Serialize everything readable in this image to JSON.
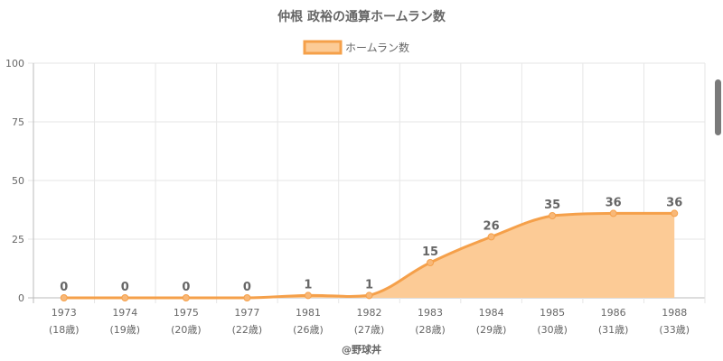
{
  "chart_data": {
    "type": "area",
    "title": "仲根 政裕の通算ホームラン数",
    "legend": {
      "label": "ホームラン数",
      "position": "top"
    },
    "categories": [
      "1973",
      "1974",
      "1975",
      "1977",
      "1981",
      "1982",
      "1983",
      "1984",
      "1985",
      "1986",
      "1988"
    ],
    "category_sublabels": [
      "(18歳)",
      "(19歳)",
      "(20歳)",
      "(22歳)",
      "(26歳)",
      "(27歳)",
      "(28歳)",
      "(29歳)",
      "(30歳)",
      "(31歳)",
      "(33歳)"
    ],
    "series": [
      {
        "name": "ホームラン数",
        "values": [
          0,
          0,
          0,
          0,
          1,
          1,
          15,
          26,
          35,
          36,
          36
        ]
      }
    ],
    "ylim": [
      0,
      100
    ],
    "yticks": [
      0,
      25,
      50,
      75,
      100
    ],
    "grid": true,
    "colors": {
      "line": "#f5a04a",
      "fill": "#fccb96",
      "point": "#f8b878"
    }
  },
  "credit": "@野球丼"
}
